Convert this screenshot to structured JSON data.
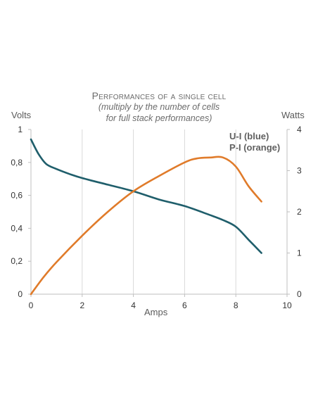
{
  "chart_data": {
    "type": "line",
    "title": "Performances of a single cell",
    "subtitle_line1": "(multiply by the number of cells",
    "subtitle_line2": "for full stack performances)",
    "xlabel": "Amps",
    "ylabel_left": "Volts",
    "ylabel_right": "Watts",
    "xlim": [
      0,
      10
    ],
    "ylim_left": [
      0,
      1
    ],
    "ylim_right": [
      0,
      4
    ],
    "x_ticks": [
      "0",
      "2",
      "4",
      "6",
      "8",
      "10"
    ],
    "y_left_ticks": [
      "0",
      "0,2",
      "0,4",
      "0,6",
      "0,8",
      "1"
    ],
    "y_right_ticks": [
      "0",
      "1",
      "2",
      "3",
      "4"
    ],
    "grid": "vertical",
    "legend_lines": [
      "U-I (blue)",
      "P-I (orange)"
    ],
    "series": [
      {
        "name": "U-I (blue)",
        "axis": "left",
        "color": "#1f5e6b",
        "x": [
          0,
          0.3,
          0.6,
          1,
          1.5,
          2,
          3,
          4,
          5,
          6,
          7,
          7.5,
          8,
          8.5,
          9
        ],
        "y": [
          0.94,
          0.85,
          0.79,
          0.76,
          0.73,
          0.705,
          0.665,
          0.625,
          0.575,
          0.535,
          0.48,
          0.45,
          0.41,
          0.33,
          0.25
        ]
      },
      {
        "name": "P-I (orange)",
        "axis": "right",
        "color": "#e07b2a",
        "x": [
          0,
          0.5,
          1,
          2,
          3,
          4,
          5,
          6,
          6.5,
          7,
          7.5,
          8,
          8.5,
          9
        ],
        "y": [
          0,
          0.42,
          0.78,
          1.42,
          2.0,
          2.5,
          2.87,
          3.2,
          3.3,
          3.32,
          3.32,
          3.1,
          2.62,
          2.25
        ]
      }
    ]
  }
}
